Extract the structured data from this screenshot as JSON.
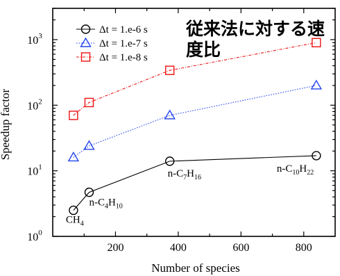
{
  "chart_data": {
    "type": "line",
    "title": "従来法に対する速度比",
    "title_lines": [
      "従来法に対する速",
      "度比"
    ],
    "xlabel": "Number of species",
    "ylabel": "Speedup factor",
    "xlim": [
      0,
      900
    ],
    "ylim": [
      1,
      3000
    ],
    "yscale": "log",
    "xticks": [
      200,
      400,
      600,
      800
    ],
    "xtick_labels": [
      "200",
      "400",
      "600",
      "800"
    ],
    "yticks": [
      1,
      10,
      100,
      1000
    ],
    "ytick_labels": [
      {
        "base": "10",
        "exp": "0"
      },
      {
        "base": "10",
        "exp": "1"
      },
      {
        "base": "10",
        "exp": "2"
      },
      {
        "base": "10",
        "exp": "3"
      }
    ],
    "grid": false,
    "legend_position": "top-left",
    "x": [
      66,
      116,
      373,
      840
    ],
    "series": [
      {
        "name": "Δt = 1.e-6 s",
        "marker": "circle",
        "color": "#000000",
        "dash": "solid",
        "values": [
          2.5,
          4.7,
          14,
          17
        ]
      },
      {
        "name": "Δt = 1.e-7 s",
        "marker": "triangle",
        "color": "#2244ee",
        "dash": "dotted",
        "values": [
          16,
          24,
          70,
          200
        ]
      },
      {
        "name": "Δt = 1.e-8 s",
        "marker": "square",
        "color": "#ee1111",
        "dash": "dashdot",
        "values": [
          70,
          110,
          340,
          900
        ]
      }
    ],
    "annotations": [
      {
        "base": "CH",
        "subs": [
          "4"
        ],
        "parts": [
          "CH",
          "4"
        ],
        "x": 66,
        "y": 2.5
      },
      {
        "base": "n-C",
        "parts": [
          "n-C",
          "4",
          "H",
          "10"
        ],
        "x": 116,
        "y": 4.7
      },
      {
        "base": "n-C",
        "parts": [
          "n-C",
          "7",
          "H",
          "16"
        ],
        "x": 373,
        "y": 14
      },
      {
        "base": "n-C",
        "parts": [
          "n-C",
          "10",
          "H",
          "22"
        ],
        "x": 840,
        "y": 17
      }
    ]
  }
}
